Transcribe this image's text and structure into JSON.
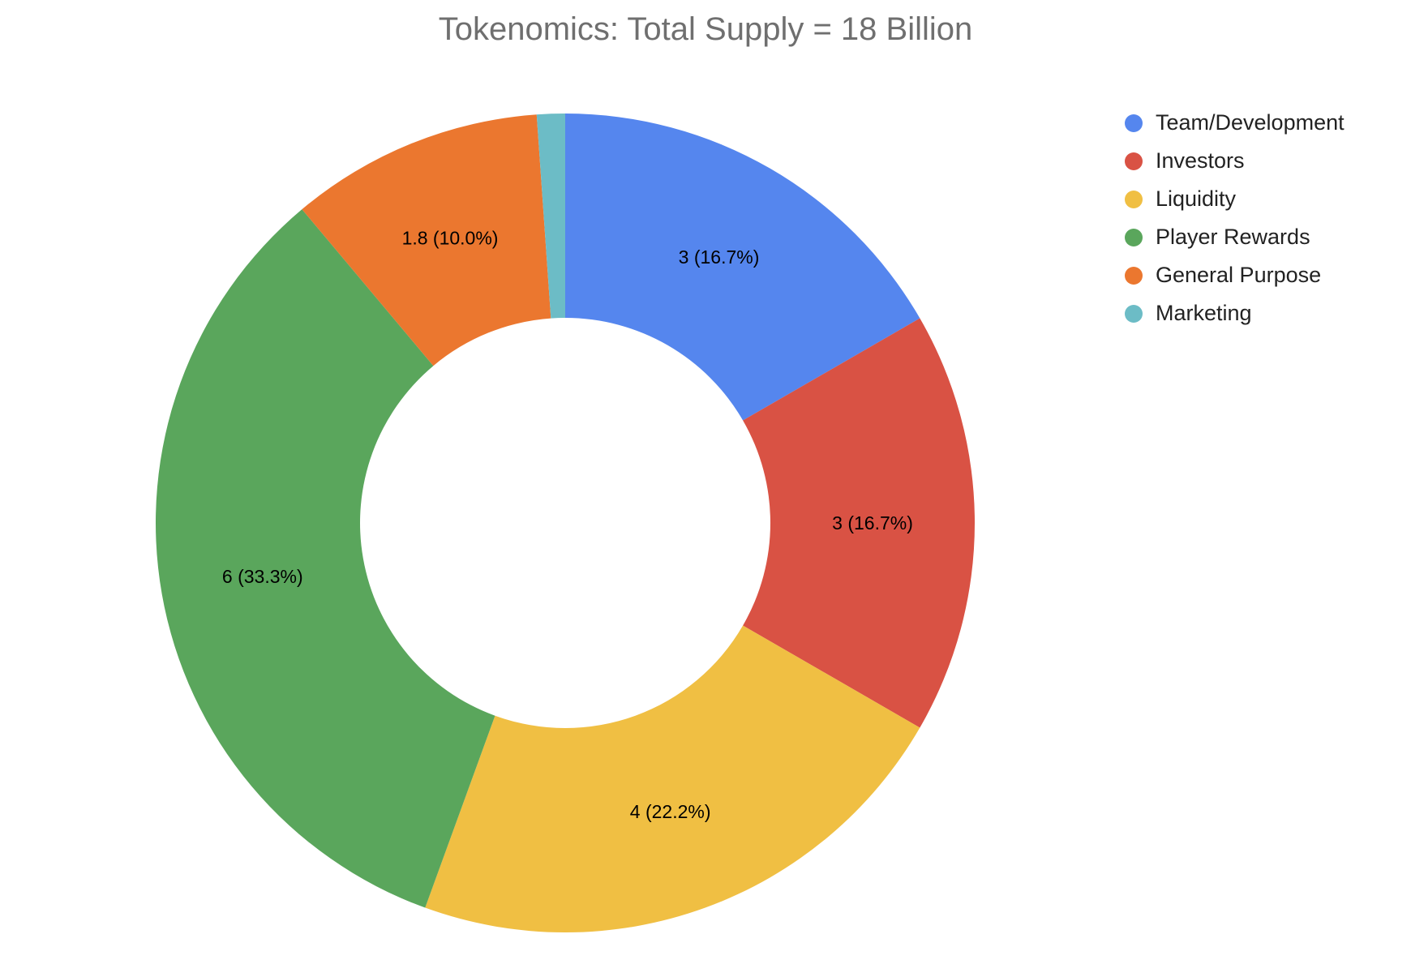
{
  "chart_data": {
    "type": "pie",
    "title": "Tokenomics: Total Supply = 18 Billion",
    "labels": [
      "Team/Development",
      "Investors",
      "Liquidity",
      "Player Rewards",
      "General Purpose",
      "Marketing"
    ],
    "values": [
      3,
      3,
      4,
      6,
      1.8,
      0.2
    ],
    "slice_labels": [
      "3 (16.7%)",
      "3 (16.7%)",
      "4 (22.2%)",
      "6 (33.3%)",
      "1.8 (10.0%)",
      ""
    ],
    "colors": [
      "#5586EE",
      "#D95244",
      "#F0BF43",
      "#5AA65C",
      "#EB772F",
      "#6CBCC6"
    ],
    "donut": true,
    "legend_position": "top-right"
  }
}
